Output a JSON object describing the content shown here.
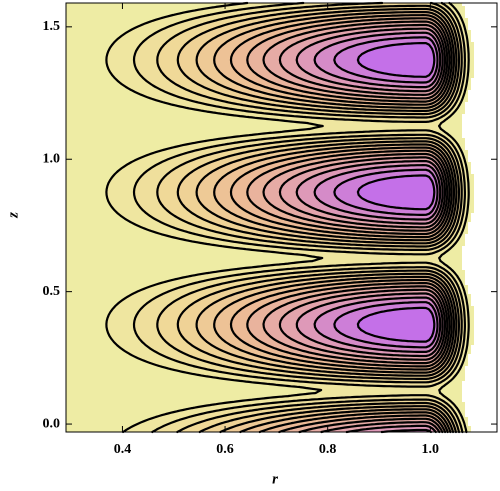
{
  "chart_data": {
    "type": "contour",
    "x_label": "r",
    "y_label": "z",
    "xlim": [
      0.29,
      1.13
    ],
    "ylim": [
      -0.03,
      1.59
    ],
    "xticks": [
      0.4,
      0.6,
      0.8,
      {
        "value": 1,
        "label": "1.0"
      }
    ],
    "yticks": [
      {
        "value": 0,
        "label": "0.0"
      },
      0.5,
      {
        "value": 1,
        "label": "1.0"
      },
      1.5
    ]
  }
}
